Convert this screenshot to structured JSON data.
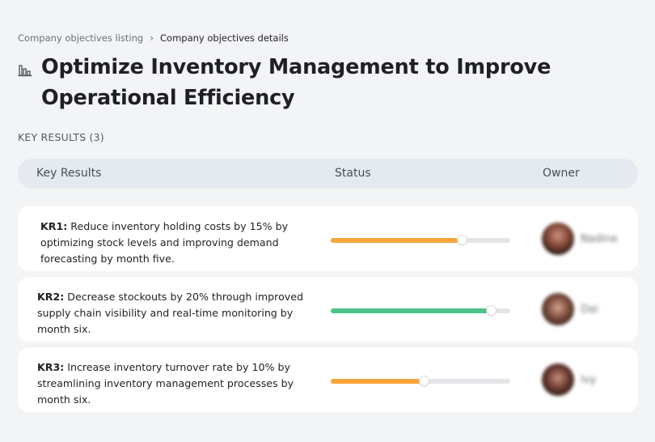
{
  "breadcrumb": {
    "parent": "Company objectives listing",
    "separator": "›",
    "current": "Company objectives details"
  },
  "objective": {
    "icon": "building-chart-icon",
    "title": "Optimize Inventory Management to Improve Operational Efficiency"
  },
  "key_results_count_label": "KEY RESULTS (3)",
  "table": {
    "headers": {
      "key_results": "Key Results",
      "status": "Status",
      "owner": "Owner"
    }
  },
  "key_results": [
    {
      "id": "KR1:",
      "text": " Reduce inventory holding costs by 15% by optimizing stock levels and improving demand forecasting by month five.",
      "progress": 0.73,
      "color": "#f9a53a",
      "owner": "Nadine"
    },
    {
      "id": "KR2:",
      "text": " Decrease stockouts by 20% through improved supply chain visibility and real-time monitoring by month six.",
      "progress": 0.89,
      "color": "#4cc38a",
      "owner": "Dai"
    },
    {
      "id": "KR3:",
      "text": " Increase inventory turnover rate by 10% by streamlining inventory management processes by month six.",
      "progress": 0.52,
      "color": "#f9a53a",
      "owner": "Ivy"
    }
  ]
}
